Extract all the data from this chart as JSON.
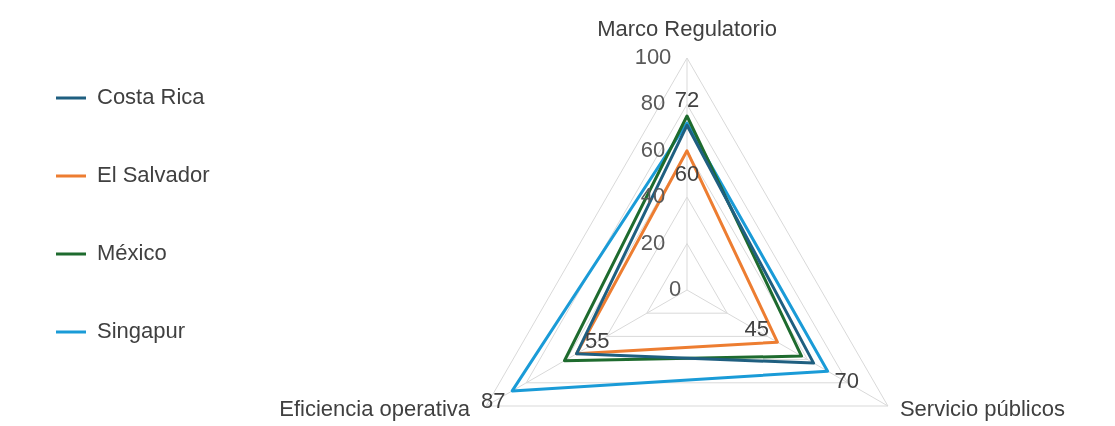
{
  "chart_data": {
    "type": "radar",
    "categories": [
      "Marco Regulatorio",
      "Servicio públicos",
      "Eficiencia operativa"
    ],
    "series": [
      {
        "name": "Costa Rica",
        "color": "#1f5f80",
        "values": [
          71,
          63,
          55
        ]
      },
      {
        "name": "El Salvador",
        "color": "#ed7d31",
        "values": [
          60,
          45,
          55
        ],
        "value_labels": [
          "60",
          "45",
          "55"
        ]
      },
      {
        "name": "México",
        "color": "#1e6b2e",
        "values": [
          75,
          57,
          61
        ]
      },
      {
        "name": "Singapur",
        "color": "#1a9bd7",
        "values": [
          72,
          70,
          87
        ],
        "value_labels": [
          "72",
          "70",
          "87"
        ]
      }
    ],
    "ylim": [
      0,
      100
    ],
    "yticks": [
      {
        "value": 0,
        "label": "0"
      },
      20,
      40,
      60,
      80,
      100
    ],
    "grid": true,
    "legend": "left",
    "marker": "none",
    "line_style": "solid"
  }
}
